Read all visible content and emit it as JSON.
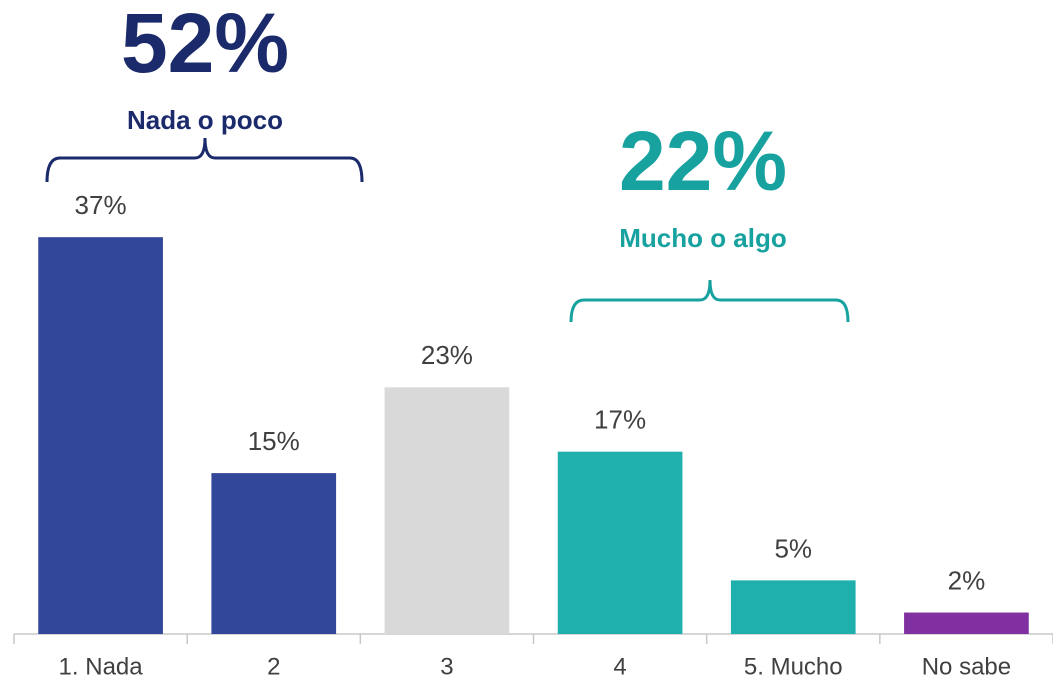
{
  "chart_data": {
    "type": "bar",
    "categories": [
      "1. Nada",
      "2",
      "3",
      "4",
      "5. Mucho",
      "No sabe"
    ],
    "values": [
      37,
      15,
      23,
      17,
      5,
      2
    ],
    "value_labels": [
      "37%",
      "15%",
      "23%",
      "17%",
      "5%",
      "2%"
    ],
    "colors": [
      "#32469a",
      "#32469a",
      "#d9d9d9",
      "#1fb0ae",
      "#1fb0ae",
      "#8030a0"
    ],
    "ylim": [
      0,
      40
    ],
    "annotations": [
      {
        "text": "52%",
        "label": "Nada o poco",
        "color": "#1b2a6b"
      },
      {
        "text": "22%",
        "label": "Mucho o algo",
        "color": "#17a2a0"
      }
    ]
  }
}
